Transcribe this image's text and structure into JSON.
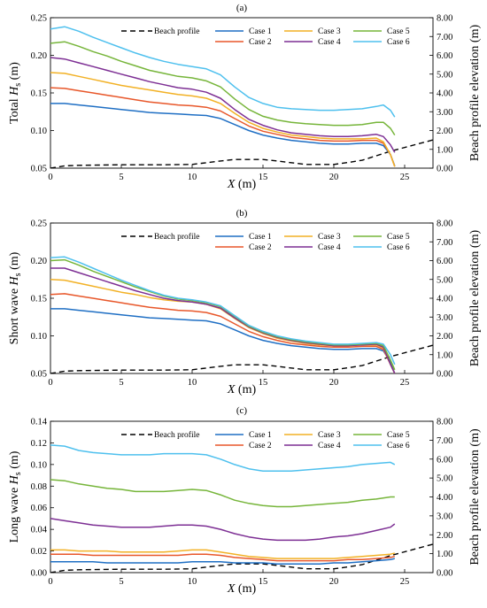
{
  "figure": {
    "colors": {
      "Case 1": "#1f6fc4",
      "Case 2": "#e8572a",
      "Case 3": "#f2b125",
      "Case 4": "#7d2f94",
      "Case 5": "#76b53a",
      "Case 6": "#4ec0ee",
      "Beach profile": "#000000"
    }
  },
  "chart_data": [
    {
      "type": "line",
      "title": "(a)",
      "xlabel": "X (m)",
      "ylabel": "Total Hs (m)",
      "y2label": "Beach profile elevation (m)",
      "xlim": [
        0,
        27
      ],
      "ylim": [
        0.05,
        0.25
      ],
      "y2lim": [
        0,
        8
      ],
      "xticks": [
        "0",
        "5",
        "10",
        "15",
        "20",
        "25"
      ],
      "yticks": [
        "0.05",
        "0.10",
        "0.15",
        "0.20",
        "0.25"
      ],
      "y2ticks": [
        "0.00",
        "1.00",
        "2.00",
        "3.00",
        "4.00",
        "5.00",
        "6.00",
        "7.00",
        "8.00"
      ],
      "legend": [
        "Beach profile",
        "Case 1",
        "Case 2",
        "Case 3",
        "Case 4",
        "Case 5",
        "Case 6"
      ],
      "x": [
        0,
        1,
        2,
        3,
        4,
        5,
        6,
        7,
        8,
        9,
        10,
        11,
        12,
        13,
        14,
        15,
        16,
        17,
        18,
        19,
        20,
        21,
        22,
        23,
        23.5,
        24,
        24.3
      ],
      "series": [
        {
          "name": "Case 1",
          "values": [
            0.136,
            0.136,
            0.134,
            0.132,
            0.13,
            0.128,
            0.126,
            0.124,
            0.123,
            0.122,
            0.121,
            0.12,
            0.116,
            0.108,
            0.1,
            0.094,
            0.09,
            0.087,
            0.085,
            0.083,
            0.082,
            0.082,
            0.083,
            0.083,
            0.08,
            0.068,
            0.053
          ]
        },
        {
          "name": "Case 2",
          "values": [
            0.157,
            0.156,
            0.153,
            0.15,
            0.147,
            0.144,
            0.141,
            0.138,
            0.136,
            0.134,
            0.133,
            0.131,
            0.126,
            0.116,
            0.106,
            0.099,
            0.095,
            0.091,
            0.089,
            0.087,
            0.086,
            0.086,
            0.087,
            0.087,
            0.083,
            0.068,
            0.052
          ]
        },
        {
          "name": "Case 3",
          "values": [
            0.177,
            0.176,
            0.172,
            0.168,
            0.164,
            0.16,
            0.157,
            0.154,
            0.151,
            0.148,
            0.146,
            0.143,
            0.136,
            0.123,
            0.111,
            0.103,
            0.098,
            0.094,
            0.092,
            0.09,
            0.089,
            0.089,
            0.089,
            0.09,
            0.085,
            0.068,
            0.052
          ]
        },
        {
          "name": "Case 4",
          "values": [
            0.197,
            0.195,
            0.19,
            0.185,
            0.18,
            0.175,
            0.17,
            0.165,
            0.161,
            0.157,
            0.155,
            0.151,
            0.143,
            0.128,
            0.115,
            0.107,
            0.101,
            0.097,
            0.095,
            0.093,
            0.092,
            0.092,
            0.093,
            0.095,
            0.092,
            0.081,
            0.071
          ]
        },
        {
          "name": "Case 5",
          "values": [
            0.216,
            0.218,
            0.212,
            0.205,
            0.199,
            0.192,
            0.186,
            0.18,
            0.176,
            0.172,
            0.17,
            0.166,
            0.158,
            0.142,
            0.128,
            0.119,
            0.114,
            0.111,
            0.109,
            0.108,
            0.107,
            0.107,
            0.108,
            0.111,
            0.111,
            0.103,
            0.094
          ]
        },
        {
          "name": "Case 6",
          "values": [
            0.235,
            0.238,
            0.232,
            0.224,
            0.217,
            0.21,
            0.203,
            0.197,
            0.192,
            0.188,
            0.185,
            0.182,
            0.174,
            0.158,
            0.144,
            0.136,
            0.131,
            0.129,
            0.128,
            0.127,
            0.127,
            0.128,
            0.129,
            0.132,
            0.134,
            0.127,
            0.118
          ]
        }
      ],
      "beach_profile": {
        "x": [
          0,
          1,
          2,
          5,
          8,
          10,
          12,
          13,
          15,
          16,
          18,
          20,
          21,
          22,
          24,
          27
        ],
        "values": [
          0.0,
          0.12,
          0.15,
          0.18,
          0.18,
          0.2,
          0.38,
          0.46,
          0.46,
          0.38,
          0.2,
          0.2,
          0.3,
          0.42,
          0.9,
          1.5
        ]
      }
    },
    {
      "type": "line",
      "title": "(b)",
      "xlabel": "X (m)",
      "ylabel": "Short wave Hs (m)",
      "y2label": "Beach profile elevation (m)",
      "xlim": [
        0,
        27
      ],
      "ylim": [
        0.05,
        0.25
      ],
      "y2lim": [
        0,
        8
      ],
      "xticks": [
        "0",
        "5",
        "10",
        "15",
        "20",
        "25"
      ],
      "yticks": [
        "0.05",
        "0.10",
        "0.15",
        "0.20",
        "0.25"
      ],
      "y2ticks": [
        "0.00",
        "1.00",
        "2.00",
        "3.00",
        "4.00",
        "5.00",
        "6.00",
        "7.00",
        "8.00"
      ],
      "legend": [
        "Beach profile",
        "Case 1",
        "Case 2",
        "Case 3",
        "Case 4",
        "Case 5",
        "Case 6"
      ],
      "x": [
        0,
        1,
        2,
        3,
        4,
        5,
        6,
        7,
        8,
        9,
        10,
        11,
        12,
        13,
        14,
        15,
        16,
        17,
        18,
        19,
        20,
        21,
        22,
        23,
        23.5,
        24,
        24.3
      ],
      "series": [
        {
          "name": "Case 1",
          "values": [
            0.136,
            0.136,
            0.134,
            0.132,
            0.13,
            0.128,
            0.126,
            0.124,
            0.123,
            0.122,
            0.121,
            0.12,
            0.116,
            0.108,
            0.1,
            0.094,
            0.09,
            0.087,
            0.085,
            0.083,
            0.082,
            0.082,
            0.083,
            0.083,
            0.08,
            0.065,
            0.05
          ]
        },
        {
          "name": "Case 2",
          "values": [
            0.155,
            0.156,
            0.153,
            0.15,
            0.147,
            0.144,
            0.141,
            0.138,
            0.136,
            0.134,
            0.133,
            0.131,
            0.126,
            0.116,
            0.106,
            0.099,
            0.094,
            0.09,
            0.088,
            0.086,
            0.085,
            0.085,
            0.086,
            0.086,
            0.082,
            0.062,
            0.05
          ]
        },
        {
          "name": "Case 3",
          "values": [
            0.175,
            0.174,
            0.17,
            0.166,
            0.162,
            0.158,
            0.155,
            0.151,
            0.148,
            0.146,
            0.145,
            0.142,
            0.136,
            0.123,
            0.111,
            0.103,
            0.097,
            0.093,
            0.09,
            0.088,
            0.087,
            0.087,
            0.088,
            0.088,
            0.084,
            0.062,
            0.05
          ]
        },
        {
          "name": "Case 4",
          "values": [
            0.19,
            0.19,
            0.184,
            0.178,
            0.172,
            0.166,
            0.16,
            0.155,
            0.15,
            0.147,
            0.145,
            0.142,
            0.137,
            0.124,
            0.112,
            0.104,
            0.098,
            0.094,
            0.091,
            0.089,
            0.087,
            0.087,
            0.088,
            0.089,
            0.085,
            0.062,
            0.05
          ]
        },
        {
          "name": "Case 5",
          "values": [
            0.2,
            0.201,
            0.194,
            0.186,
            0.179,
            0.172,
            0.165,
            0.159,
            0.153,
            0.149,
            0.147,
            0.144,
            0.139,
            0.126,
            0.113,
            0.105,
            0.099,
            0.095,
            0.092,
            0.09,
            0.088,
            0.088,
            0.089,
            0.09,
            0.087,
            0.068,
            0.055
          ]
        },
        {
          "name": "Case 6",
          "values": [
            0.204,
            0.205,
            0.198,
            0.19,
            0.182,
            0.174,
            0.167,
            0.16,
            0.154,
            0.15,
            0.148,
            0.145,
            0.14,
            0.127,
            0.114,
            0.106,
            0.1,
            0.096,
            0.093,
            0.091,
            0.089,
            0.089,
            0.09,
            0.091,
            0.089,
            0.075,
            0.062
          ]
        }
      ],
      "beach_profile": {
        "x": [
          0,
          1,
          2,
          5,
          8,
          10,
          12,
          13,
          15,
          16,
          18,
          20,
          21,
          22,
          24,
          27
        ],
        "values": [
          0.0,
          0.12,
          0.15,
          0.18,
          0.18,
          0.2,
          0.38,
          0.46,
          0.46,
          0.38,
          0.2,
          0.2,
          0.3,
          0.42,
          0.9,
          1.5
        ]
      }
    },
    {
      "type": "line",
      "title": "(c)",
      "xlabel": "X (m)",
      "ylabel": "Long wave Hs (m)",
      "y2label": "Beach profile elevation (m)",
      "xlim": [
        0,
        27
      ],
      "ylim": [
        0,
        0.14
      ],
      "y2lim": [
        0,
        8
      ],
      "xticks": [
        "0",
        "5",
        "10",
        "15",
        "20",
        "25"
      ],
      "yticks": [
        "0.00",
        "0.02",
        "0.04",
        "0.06",
        "0.08",
        "0.10",
        "0.12",
        "0.14"
      ],
      "y2ticks": [
        "0.00",
        "1.00",
        "2.00",
        "3.00",
        "4.00",
        "5.00",
        "6.00",
        "7.00",
        "8.00"
      ],
      "legend": [
        "Beach profile",
        "Case 1",
        "Case 2",
        "Case 3",
        "Case 4",
        "Case 5",
        "Case 6"
      ],
      "x": [
        0,
        1,
        2,
        3,
        4,
        5,
        6,
        7,
        8,
        9,
        10,
        11,
        12,
        13,
        14,
        15,
        16,
        17,
        18,
        19,
        20,
        21,
        22,
        23,
        24,
        24.3
      ],
      "series": [
        {
          "name": "Case 1",
          "values": [
            0.01,
            0.01,
            0.01,
            0.01,
            0.009,
            0.009,
            0.009,
            0.009,
            0.009,
            0.009,
            0.01,
            0.01,
            0.01,
            0.009,
            0.009,
            0.009,
            0.008,
            0.008,
            0.008,
            0.008,
            0.009,
            0.009,
            0.01,
            0.011,
            0.012,
            0.013
          ]
        },
        {
          "name": "Case 2",
          "values": [
            0.017,
            0.017,
            0.017,
            0.016,
            0.016,
            0.016,
            0.016,
            0.016,
            0.016,
            0.016,
            0.017,
            0.017,
            0.016,
            0.014,
            0.013,
            0.012,
            0.011,
            0.011,
            0.011,
            0.011,
            0.011,
            0.012,
            0.012,
            0.013,
            0.014,
            0.015
          ]
        },
        {
          "name": "Case 3",
          "values": [
            0.021,
            0.021,
            0.02,
            0.02,
            0.02,
            0.019,
            0.019,
            0.019,
            0.019,
            0.02,
            0.021,
            0.021,
            0.019,
            0.017,
            0.015,
            0.014,
            0.013,
            0.013,
            0.013,
            0.013,
            0.013,
            0.014,
            0.015,
            0.016,
            0.017,
            0.018
          ]
        },
        {
          "name": "Case 4",
          "values": [
            0.05,
            0.048,
            0.046,
            0.044,
            0.043,
            0.042,
            0.042,
            0.042,
            0.043,
            0.044,
            0.044,
            0.043,
            0.04,
            0.036,
            0.033,
            0.031,
            0.03,
            0.03,
            0.03,
            0.031,
            0.033,
            0.034,
            0.036,
            0.039,
            0.042,
            0.045
          ]
        },
        {
          "name": "Case 5",
          "values": [
            0.086,
            0.085,
            0.082,
            0.08,
            0.078,
            0.077,
            0.075,
            0.075,
            0.075,
            0.076,
            0.077,
            0.076,
            0.072,
            0.067,
            0.064,
            0.062,
            0.061,
            0.061,
            0.062,
            0.063,
            0.064,
            0.065,
            0.067,
            0.068,
            0.07,
            0.07
          ]
        },
        {
          "name": "Case 6",
          "values": [
            0.118,
            0.117,
            0.113,
            0.111,
            0.11,
            0.109,
            0.109,
            0.109,
            0.11,
            0.11,
            0.11,
            0.109,
            0.105,
            0.1,
            0.096,
            0.094,
            0.094,
            0.094,
            0.095,
            0.096,
            0.097,
            0.098,
            0.1,
            0.101,
            0.102,
            0.1
          ]
        }
      ],
      "beach_profile": {
        "x": [
          0,
          1,
          2,
          5,
          8,
          10,
          12,
          13,
          15,
          16,
          18,
          20,
          21,
          22,
          24,
          27
        ],
        "values": [
          0.0,
          0.12,
          0.15,
          0.18,
          0.18,
          0.2,
          0.38,
          0.46,
          0.46,
          0.38,
          0.2,
          0.2,
          0.3,
          0.42,
          0.9,
          1.5
        ]
      }
    }
  ]
}
